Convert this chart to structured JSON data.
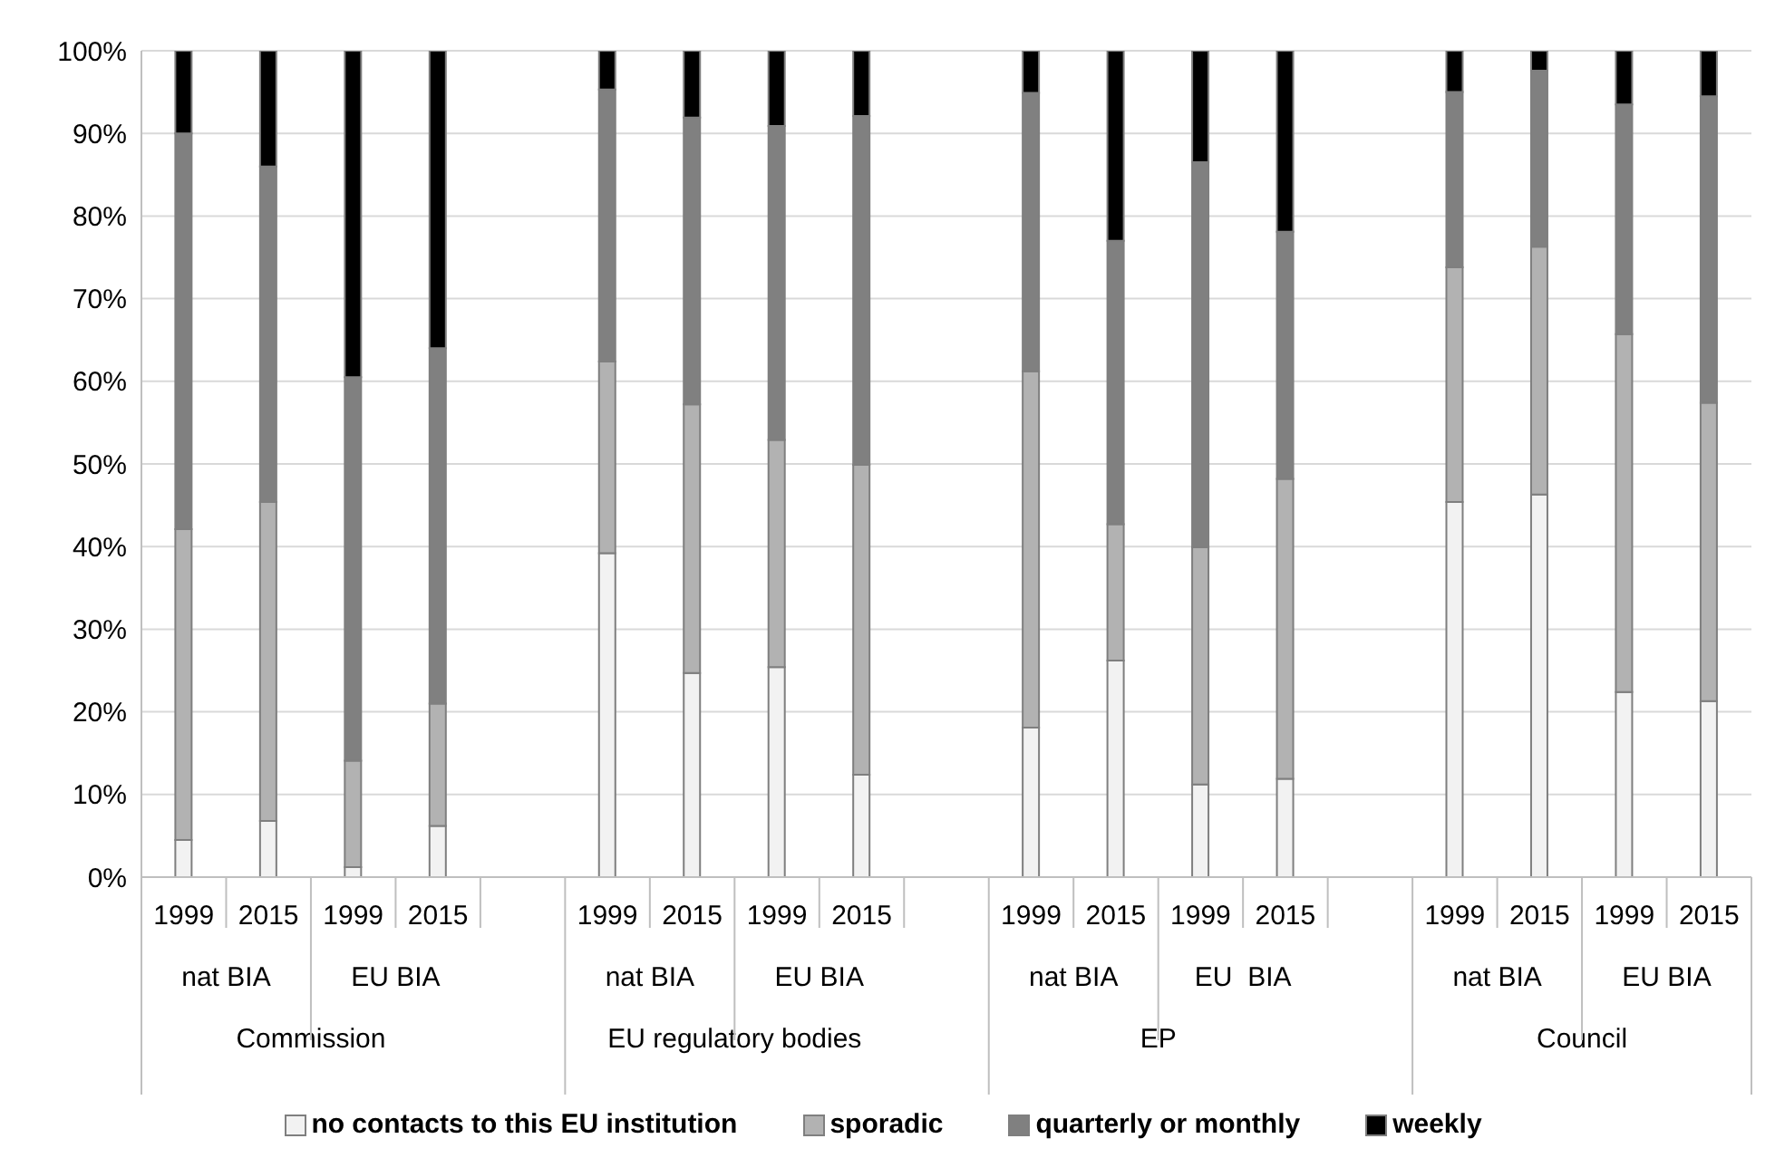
{
  "chart_data": {
    "type": "bar",
    "stacked": true,
    "categories": [
      "1999",
      "2015",
      "1999",
      "2015",
      null,
      "1999",
      "2015",
      "1999",
      "2015",
      null,
      "1999",
      "2015",
      "1999",
      "2015",
      null,
      "1999",
      "2015",
      "1999",
      "2015"
    ],
    "series": [
      {
        "name": "no contacts to this EU institution",
        "color": "#f2f2f2",
        "values": [
          4.5,
          6.8,
          1.2,
          6.2,
          null,
          39.2,
          24.7,
          25.4,
          12.4,
          null,
          18.1,
          26.2,
          11.2,
          11.9,
          null,
          45.4,
          46.3,
          22.4,
          21.3
        ]
      },
      {
        "name": "sporadic",
        "color": "#b2b2b2",
        "values": [
          37.6,
          38.6,
          12.9,
          14.8,
          null,
          23.2,
          32.5,
          27.5,
          37.5,
          null,
          43.1,
          16.5,
          28.7,
          36.3,
          null,
          28.4,
          30.0,
          43.3,
          36.1
        ]
      },
      {
        "name": "quarterly or monthly",
        "color": "#808080",
        "values": [
          47.9,
          40.6,
          46.4,
          43.0,
          null,
          32.9,
          34.7,
          38.0,
          42.2,
          null,
          33.7,
          34.3,
          46.6,
          29.9,
          null,
          21.2,
          21.3,
          27.8,
          37.1
        ]
      },
      {
        "name": "weekly",
        "color": "#000000",
        "values": [
          10.0,
          14.0,
          39.5,
          36.0,
          null,
          4.7,
          8.1,
          9.1,
          7.9,
          null,
          5.1,
          23.0,
          13.5,
          21.9,
          null,
          5.0,
          2.4,
          6.5,
          5.5
        ]
      }
    ],
    "ylim": [
      0,
      100
    ],
    "yticks": [
      {
        "value": 0,
        "label": "0%"
      },
      {
        "value": 10,
        "label": "10%"
      },
      {
        "value": 20,
        "label": "20%"
      },
      {
        "value": 30,
        "label": "30%"
      },
      {
        "value": 40,
        "label": "40%"
      },
      {
        "value": 50,
        "label": "50%"
      },
      {
        "value": 60,
        "label": "60%"
      },
      {
        "value": 70,
        "label": "70%"
      },
      {
        "value": 80,
        "label": "80%"
      },
      {
        "value": 90,
        "label": "90%"
      },
      {
        "value": 100,
        "label": "100%"
      }
    ],
    "grid": "y",
    "legend": "bottom",
    "annotations": [
      "nat BIA",
      "EU BIA",
      "nat BIA",
      "EU BIA",
      "nat BIA",
      "EU  BIA",
      "nat BIA",
      "EU BIA",
      "Commission",
      "EU regulatory bodies",
      "EP",
      "Council"
    ]
  }
}
